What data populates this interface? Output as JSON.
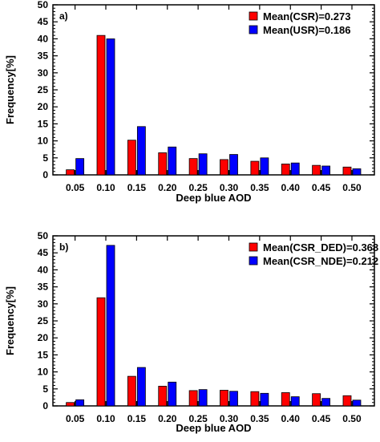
{
  "chart_data": [
    {
      "type": "bar",
      "panel_label": "a)",
      "xlabel": "Deep blue AOD",
      "ylabel": "Frequency[%]",
      "ylim": [
        0,
        50
      ],
      "yticks": [
        "0",
        "5",
        "10",
        "15",
        "20",
        "25",
        "30",
        "35",
        "40",
        "45",
        "50"
      ],
      "categories": [
        "0.05",
        "0.10",
        "0.15",
        "0.20",
        "0.25",
        "0.30",
        "0.35",
        "0.40",
        "0.45",
        "0.50"
      ],
      "series": [
        {
          "name": "Mean(CSR)=0.273",
          "color": "#ff0000",
          "values": [
            1.5,
            41,
            10.2,
            6.5,
            4.8,
            4.5,
            4.0,
            3.2,
            2.8,
            2.3
          ]
        },
        {
          "name": "Mean(USR)=0.186",
          "color": "#0000ff",
          "values": [
            4.8,
            40,
            14.2,
            8.2,
            6.2,
            6.0,
            5.0,
            3.5,
            2.6,
            1.8
          ]
        }
      ],
      "legend": "top-right",
      "grid": false
    },
    {
      "type": "bar",
      "panel_label": "b)",
      "xlabel": "Deep blue AOD",
      "ylabel": "Frequency[%]",
      "ylim": [
        0,
        50
      ],
      "yticks": [
        "0",
        "5",
        "10",
        "15",
        "20",
        "25",
        "30",
        "35",
        "40",
        "45",
        "50"
      ],
      "categories": [
        "0.05",
        "0.10",
        "0.15",
        "0.20",
        "0.25",
        "0.30",
        "0.35",
        "0.40",
        "0.45",
        "0.50"
      ],
      "series": [
        {
          "name": "Mean(CSR_DED)=0.368",
          "color": "#ff0000",
          "values": [
            1.0,
            31.8,
            8.7,
            5.8,
            4.5,
            4.6,
            4.2,
            3.9,
            3.6,
            3.0
          ]
        },
        {
          "name": "Mean(CSR_NDE)=0.212",
          "color": "#0000ff",
          "values": [
            1.8,
            47.2,
            11.3,
            7.0,
            4.8,
            4.3,
            3.7,
            2.7,
            2.2,
            1.7
          ]
        }
      ],
      "legend": "top-right",
      "grid": false
    }
  ]
}
